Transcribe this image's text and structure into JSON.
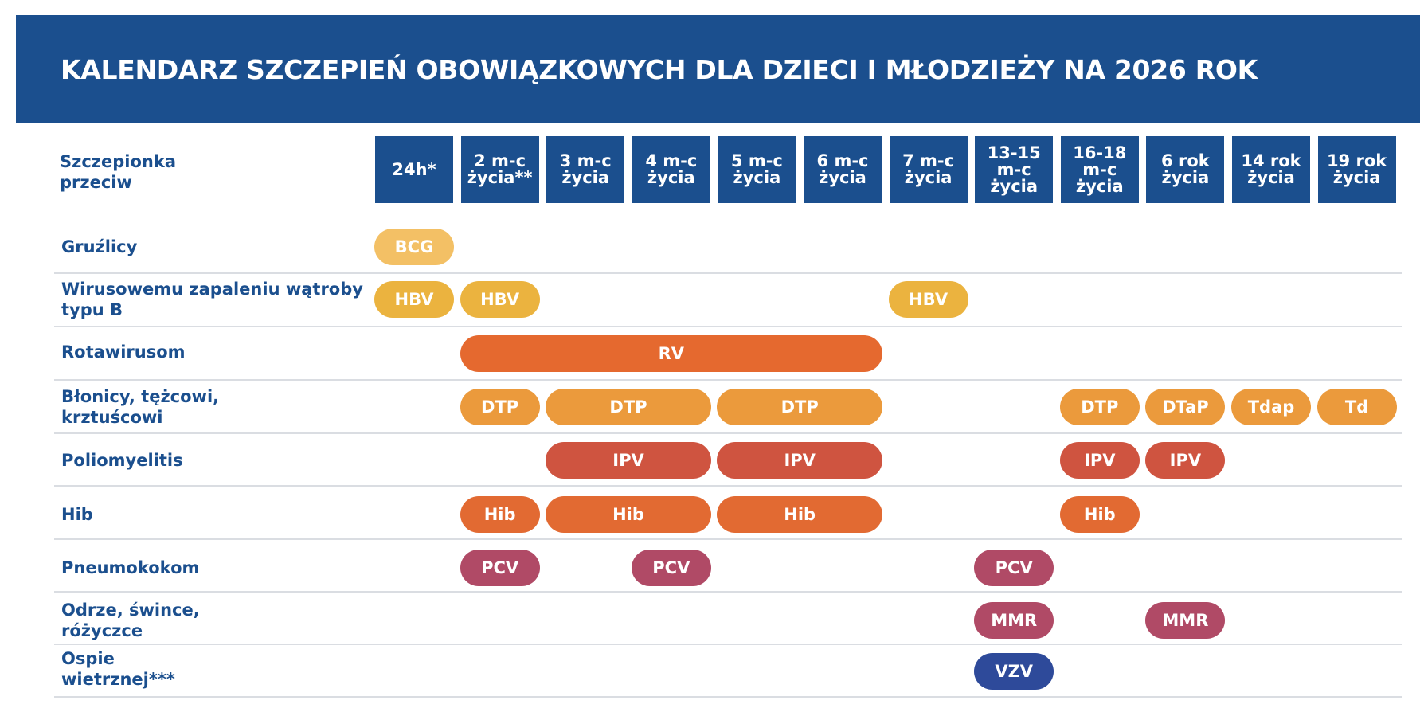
{
  "title": "KALENDARZ SZCZEPIEŃ OBOWIĄZKOWYCH DLA DZIECI I MŁODZIEŻY NA 2026 ROK",
  "column_label": "Szczepionka\nprzeciw",
  "ages": [
    "24h*",
    "2 m-c\nżycia**",
    "3 m-c\nżycia",
    "4 m-c\nżycia",
    "5 m-c\nżycia",
    "6 m-c\nżycia",
    "7 m-c\nżycia",
    "13-15\nm-c\nżycia",
    "16-18\nm-c\nżycia",
    "6 rok\nżycia",
    "14 rok\nżycia",
    "19 rok\nżycia"
  ],
  "colors": {
    "header": "#1b4f8e",
    "yellow": "#f0b845",
    "orange_light": "#eb9a3c",
    "orange": "#e5692f",
    "red": "#d0543e",
    "rose": "#b04a66",
    "blue": "#2e4a9a"
  },
  "rows": [
    {
      "label": "Gruźlicy",
      "vaccines": [
        {
          "name": "BCG",
          "from": 0,
          "to": 0,
          "color": "#f3c065"
        }
      ]
    },
    {
      "label": "Wirusowemu zapaleniu wątroby\ntypu B",
      "vaccines": [
        {
          "name": "HBV",
          "from": 0,
          "to": 0,
          "color": "#ebb33f"
        },
        {
          "name": "HBV",
          "from": 1,
          "to": 1,
          "color": "#ebb33f"
        },
        {
          "name": "HBV",
          "from": 6,
          "to": 6,
          "color": "#ebb33f"
        }
      ]
    },
    {
      "label": "Rotawirusom",
      "vaccines": [
        {
          "name": "RV",
          "from": 1,
          "to": 5,
          "color": "#e5692f"
        }
      ]
    },
    {
      "label": "Błonicy, tężcowi,\nkrztuścowi",
      "vaccines": [
        {
          "name": "DTP",
          "from": 1,
          "to": 1,
          "color": "#eb9a3c"
        },
        {
          "name": "DTP",
          "from": 2,
          "to": 3,
          "color": "#eb9a3c"
        },
        {
          "name": "DTP",
          "from": 4,
          "to": 5,
          "color": "#eb9a3c"
        },
        {
          "name": "DTP",
          "from": 8,
          "to": 8,
          "color": "#eb9a3c"
        },
        {
          "name": "DTaP",
          "from": 9,
          "to": 9,
          "color": "#eb9a3c"
        },
        {
          "name": "Tdap",
          "from": 10,
          "to": 10,
          "color": "#eb9a3c"
        },
        {
          "name": "Td",
          "from": 11,
          "to": 11,
          "color": "#eb9a3c"
        }
      ]
    },
    {
      "label": "Poliomyelitis",
      "vaccines": [
        {
          "name": "IPV",
          "from": 2,
          "to": 3,
          "color": "#cf5440"
        },
        {
          "name": "IPV",
          "from": 4,
          "to": 5,
          "color": "#cf5440"
        },
        {
          "name": "IPV",
          "from": 8,
          "to": 8,
          "color": "#cf5440"
        },
        {
          "name": "IPV",
          "from": 9,
          "to": 9,
          "color": "#cf5440"
        }
      ]
    },
    {
      "label": "Hib",
      "vaccines": [
        {
          "name": "Hib",
          "from": 1,
          "to": 1,
          "color": "#e26a32"
        },
        {
          "name": "Hib",
          "from": 2,
          "to": 3,
          "color": "#e26a32"
        },
        {
          "name": "Hib",
          "from": 4,
          "to": 5,
          "color": "#e26a32"
        },
        {
          "name": "Hib",
          "from": 8,
          "to": 8,
          "color": "#e26a32"
        }
      ]
    },
    {
      "label": "Pneumokokom",
      "vaccines": [
        {
          "name": "PCV",
          "from": 1,
          "to": 1,
          "color": "#b04a66"
        },
        {
          "name": "PCV",
          "from": 3,
          "to": 3,
          "color": "#b04a66"
        },
        {
          "name": "PCV",
          "from": 7,
          "to": 7,
          "color": "#b04a66"
        }
      ]
    },
    {
      "label": "Odrze, śwince,\nróżyczce",
      "vaccines": [
        {
          "name": "MMR",
          "from": 7,
          "to": 7,
          "color": "#b04a66"
        },
        {
          "name": "MMR",
          "from": 9,
          "to": 9,
          "color": "#b04a66"
        }
      ]
    },
    {
      "label": "Ospie\nwietrznej***",
      "vaccines": [
        {
          "name": "VZV",
          "from": 7,
          "to": 7,
          "color": "#2e4a9a"
        }
      ]
    }
  ]
}
